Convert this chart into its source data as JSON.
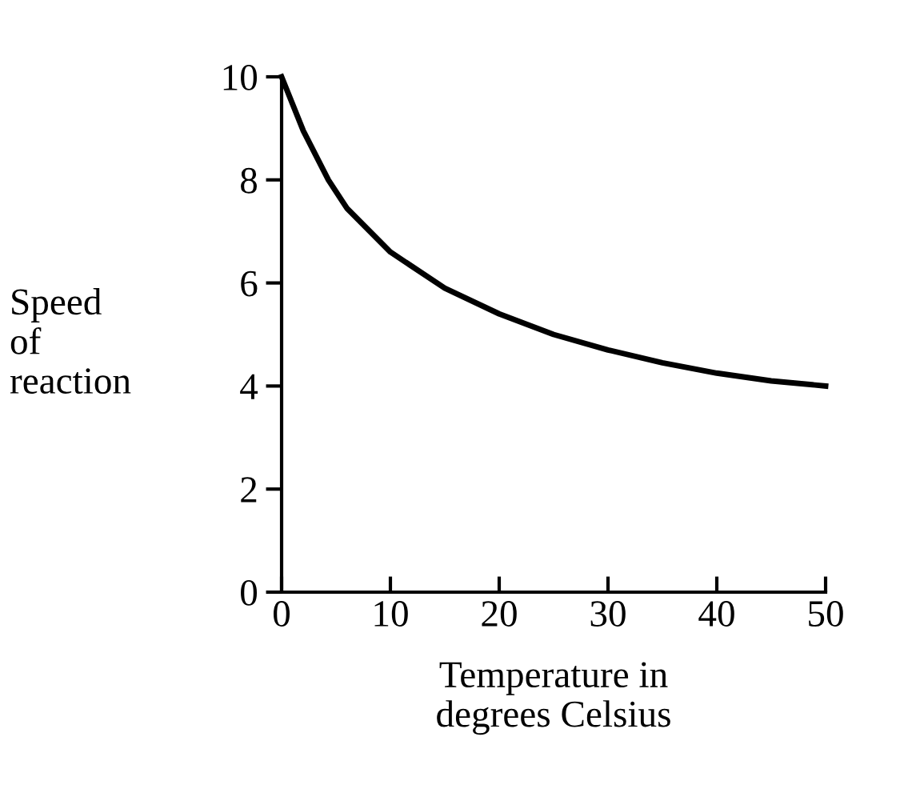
{
  "chart_data": {
    "type": "line",
    "xlabel": "Temperature in\ndegrees Celsius",
    "ylabel": "Speed\nof\nreaction",
    "series": [
      {
        "color": "#000000",
        "x": [
          0,
          2,
          4.3,
          6,
          10,
          15,
          20,
          25,
          30,
          35,
          40,
          45,
          50
        ],
        "values": [
          10,
          8.95,
          8,
          7.45,
          6.6,
          5.9,
          5.4,
          5,
          4.7,
          4.45,
          4.25,
          4.1,
          4
        ]
      }
    ],
    "xlim": [
      0,
      50
    ],
    "ylim": [
      0,
      10
    ],
    "xticks": [
      0,
      10,
      20,
      30,
      40,
      50
    ],
    "yticks": [
      0,
      2,
      4,
      6,
      8,
      10
    ],
    "grid": false,
    "legend": false,
    "marker": "none",
    "line_style": "solid"
  }
}
